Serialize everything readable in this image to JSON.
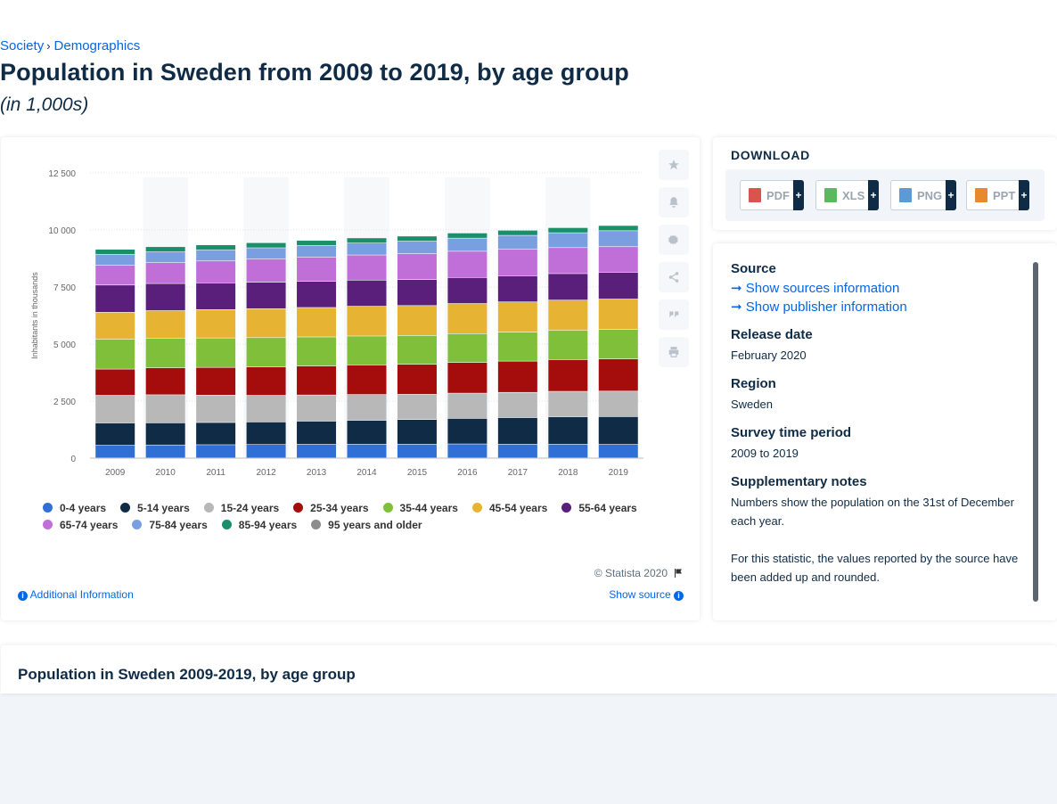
{
  "breadcrumb": {
    "item1": "Society",
    "separator": "›",
    "item2": "Demographics"
  },
  "title": "Population in Sweden from 2009 to 2019, by age group",
  "subtitle": "(in 1,000s)",
  "chart_data": {
    "type": "bar",
    "stacked": true,
    "categories": [
      "2009",
      "2010",
      "2011",
      "2012",
      "2013",
      "2014",
      "2015",
      "2016",
      "2017",
      "2018",
      "2019"
    ],
    "ylabel": "Inhabitants in thousands",
    "ylim": [
      0,
      12500
    ],
    "yticks": [
      0,
      2500,
      5000,
      7500,
      10000,
      12500
    ],
    "ytick_labels": [
      "0",
      "2 500",
      "5 000",
      "7 500",
      "10 000",
      "12 500"
    ],
    "grid": true,
    "legend_position": "bottom",
    "series": [
      {
        "name": "0-4 years",
        "color": "#2f6fd6",
        "values": [
          550,
          565,
          575,
          585,
          595,
          600,
          600,
          610,
          600,
          600,
          590
        ]
      },
      {
        "name": "5-14 years",
        "color": "#0f2b46",
        "values": [
          980,
          970,
          975,
          990,
          1015,
          1045,
          1080,
          1120,
          1165,
          1200,
          1220
        ]
      },
      {
        "name": "15-24 years",
        "color": "#b8b8b8",
        "values": [
          1210,
          1230,
          1200,
          1165,
          1145,
          1130,
          1105,
          1105,
          1105,
          1115,
          1115
        ]
      },
      {
        "name": "25-34 years",
        "color": "#a50d0d",
        "values": [
          1150,
          1180,
          1215,
          1245,
          1270,
          1295,
          1315,
          1345,
          1370,
          1390,
          1410
        ]
      },
      {
        "name": "35-44 years",
        "color": "#7fbf3a",
        "values": [
          1310,
          1300,
          1290,
          1285,
          1275,
          1270,
          1265,
          1265,
          1270,
          1285,
          1300
        ]
      },
      {
        "name": "45-54 years",
        "color": "#e6b432",
        "values": [
          1180,
          1210,
          1245,
          1270,
          1290,
          1305,
          1310,
          1320,
          1325,
          1325,
          1325
        ]
      },
      {
        "name": "55-64 years",
        "color": "#5a1f7a",
        "values": [
          1195,
          1185,
          1170,
          1155,
          1150,
          1145,
          1140,
          1140,
          1145,
          1160,
          1175
        ]
      },
      {
        "name": "65-74 years",
        "color": "#c16fd8",
        "values": [
          870,
          915,
          960,
          1020,
          1060,
          1100,
          1130,
          1150,
          1160,
          1140,
          1120
        ]
      },
      {
        "name": "75-84 years",
        "color": "#7a9fe0",
        "values": [
          470,
          475,
          480,
          490,
          505,
          525,
          550,
          575,
          610,
          650,
          700
        ]
      },
      {
        "name": "85-94 years",
        "color": "#1a8f6a",
        "values": [
          225,
          225,
          225,
          225,
          225,
          225,
          225,
          225,
          225,
          225,
          228
        ]
      },
      {
        "name": "95 years and older",
        "color": "#8c8c8c",
        "values": [
          14,
          15,
          15,
          16,
          16,
          17,
          17,
          17,
          18,
          18,
          19
        ]
      }
    ]
  },
  "chart_footer": {
    "copyright": "© Statista 2020",
    "additional_info": "Additional Information",
    "show_source": "Show source"
  },
  "download": {
    "title": "DOWNLOAD",
    "buttons": [
      {
        "label": "PDF",
        "color": "#d9534f",
        "plus": "+"
      },
      {
        "label": "XLS",
        "color": "#5cb85c",
        "plus": "+"
      },
      {
        "label": "PNG",
        "color": "#5b9bd5",
        "plus": "+"
      },
      {
        "label": "PPT",
        "color": "#e8892d",
        "plus": "+"
      }
    ]
  },
  "info": {
    "source_label": "Source",
    "source_link1": "Show sources information",
    "source_link2": "Show publisher information",
    "release_label": "Release date",
    "release_value": "February 2020",
    "region_label": "Region",
    "region_value": "Sweden",
    "survey_label": "Survey time period",
    "survey_value": "2009 to 2019",
    "notes_label": "Supplementary notes",
    "notes_value1": "Numbers show the population on the 31st of December each year.",
    "notes_value2": "For this statistic, the values reported by the source have been added up and rounded."
  },
  "bottom": {
    "title": "Population in Sweden 2009-2019, by age group"
  }
}
